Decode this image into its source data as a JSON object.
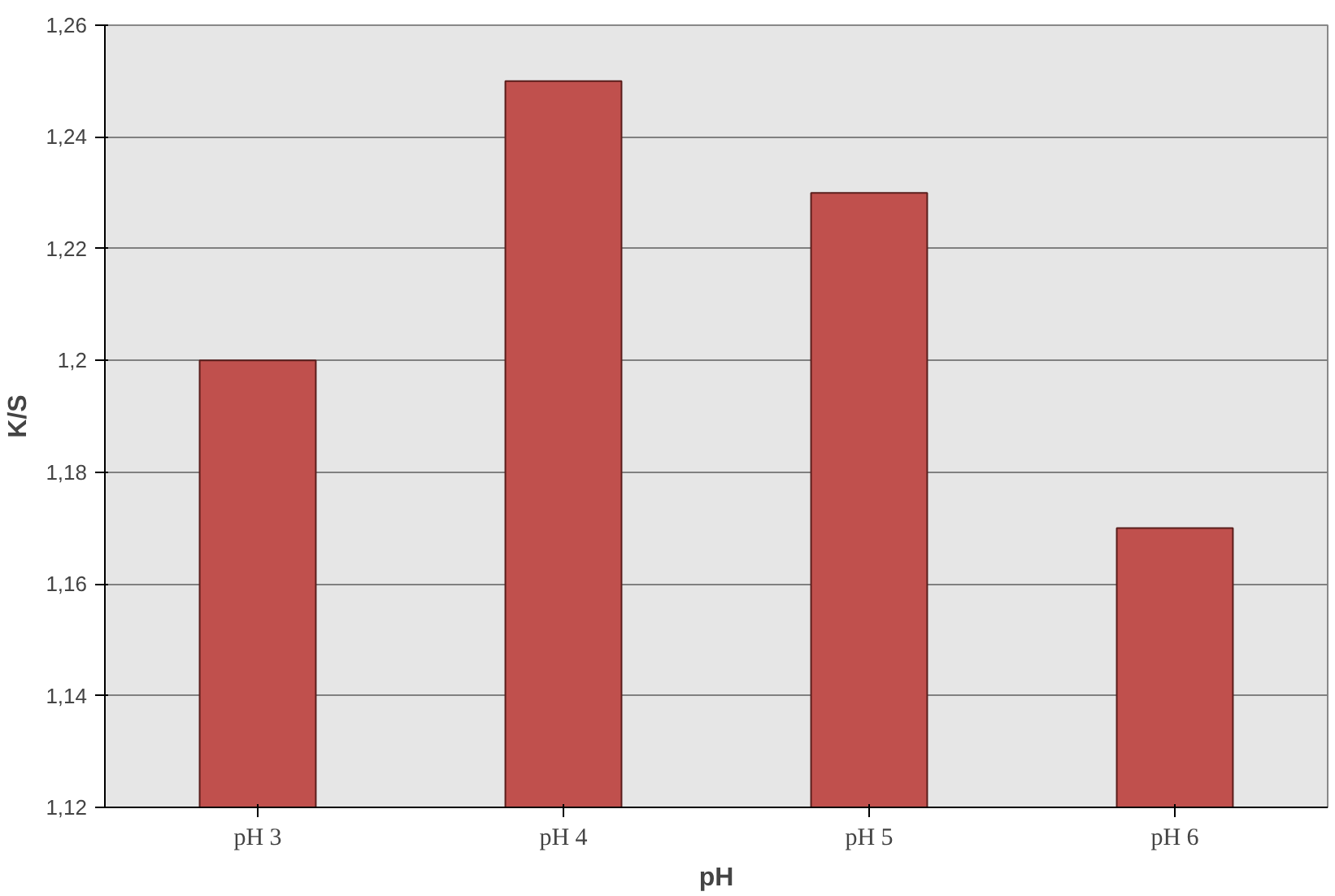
{
  "chart_data": {
    "type": "bar",
    "xlabel": "pH",
    "ylabel": "K/S",
    "categories": [
      "pH 3",
      "pH 4",
      "pH 5",
      "pH 6"
    ],
    "values": [
      1.2,
      1.25,
      1.23,
      1.17
    ],
    "color": "#c0504d",
    "ylim": [
      1.12,
      1.26
    ],
    "yticks": [
      {
        "value": 1.12,
        "label": "1,12"
      },
      {
        "value": 1.14,
        "label": "1,14"
      },
      {
        "value": 1.16,
        "label": "1,16"
      },
      {
        "value": 1.18,
        "label": "1,18"
      },
      {
        "value": 1.2,
        "label": "1,2"
      },
      {
        "value": 1.22,
        "label": "1,22"
      },
      {
        "value": 1.24,
        "label": "1,24"
      },
      {
        "value": 1.26,
        "label": "1,26"
      }
    ],
    "grid": "y"
  }
}
